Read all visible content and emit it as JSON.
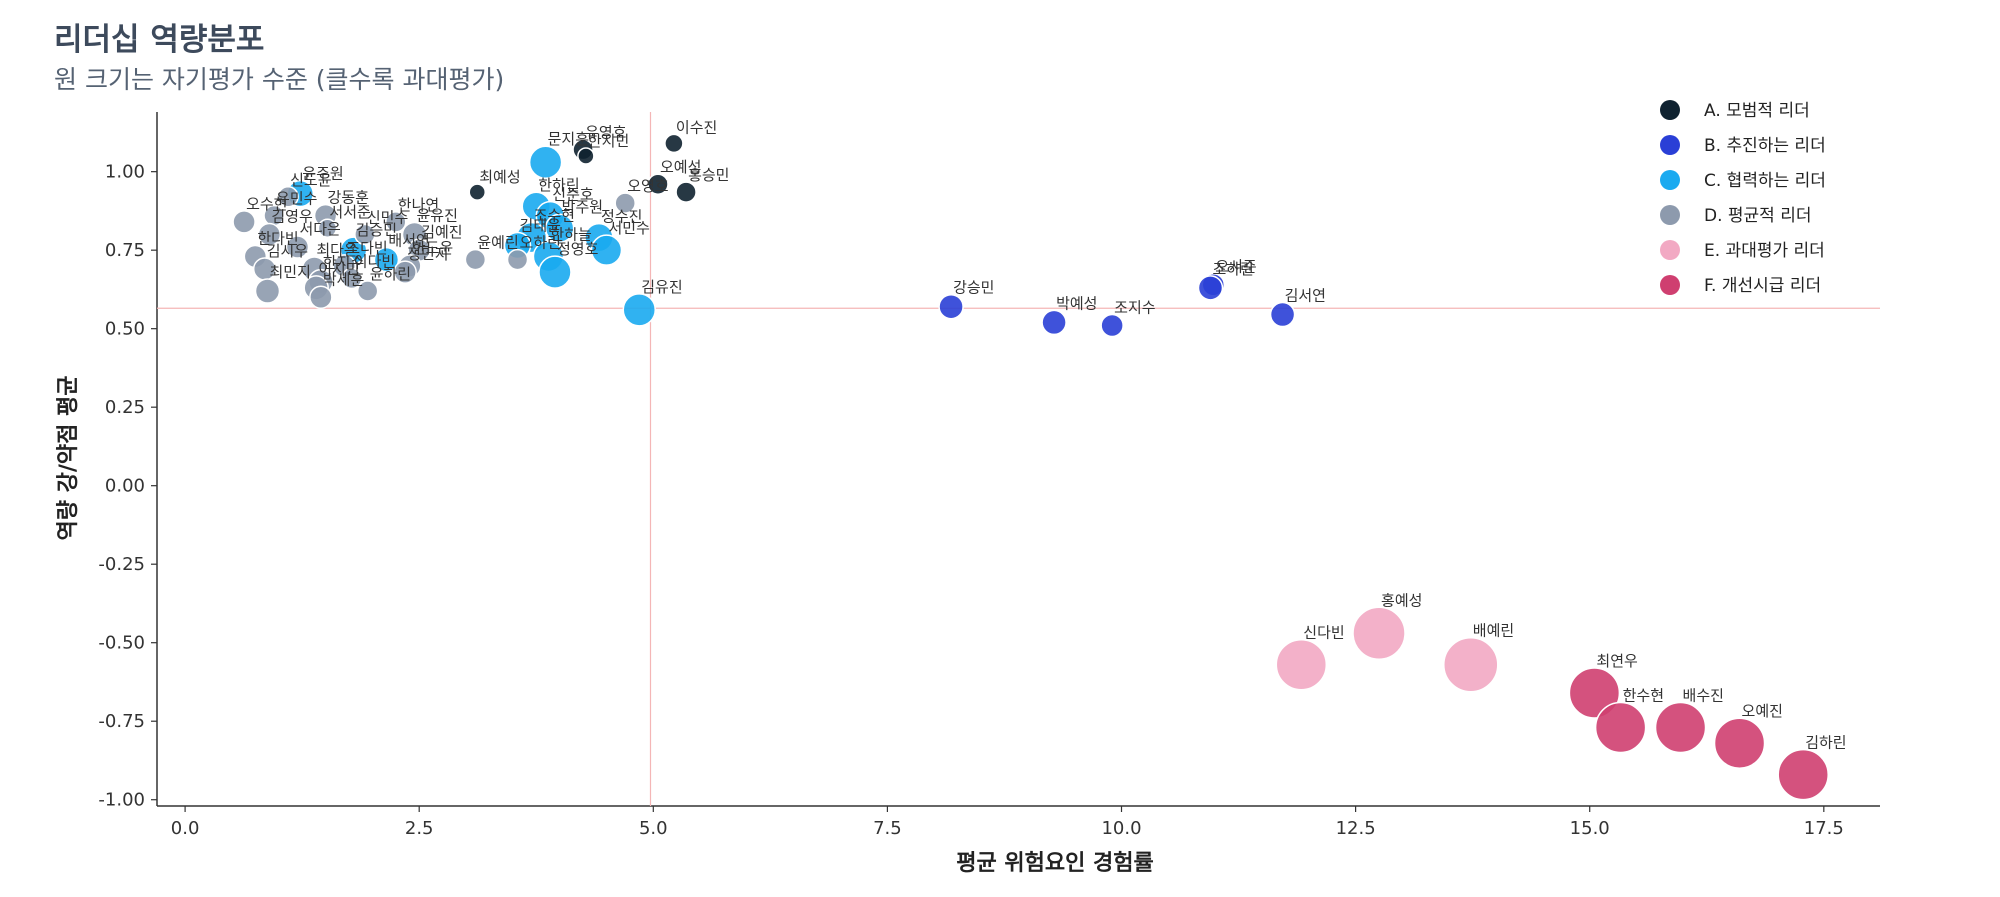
{
  "chart_data": {
    "type": "scatter",
    "title": "리더십 역량분포",
    "subtitle": "원 크기는 자기평가 수준 (클수록 과대평가)",
    "xlabel": "평균 위험요인 경험률",
    "ylabel": "역량 강/약점 평균",
    "xlim": [
      -0.3,
      18.1
    ],
    "ylim": [
      -1.02,
      1.19
    ],
    "xticks": [
      0.0,
      2.5,
      5.0,
      7.5,
      10.0,
      12.5,
      15.0,
      17.5
    ],
    "xtick_labels": [
      "0.0",
      "2.5",
      "5.0",
      "7.5",
      "10.0",
      "12.5",
      "15.0",
      "17.5"
    ],
    "yticks": [
      1.0,
      0.75,
      0.5,
      0.25,
      0.0,
      -0.25,
      -0.5,
      -0.75,
      -1.0
    ],
    "ytick_labels": [
      "1.00",
      "0.75",
      "0.50",
      "0.25",
      "0.00",
      "-0.25",
      "-0.50",
      "-0.75",
      "-1.00"
    ],
    "reference_lines": {
      "x": 4.97,
      "y": 0.565,
      "color": "#f4b6b6"
    },
    "grid": false,
    "legend_position": "top-right",
    "series": [
      {
        "name": "A. 모범적 리더",
        "color": "#0f2230",
        "points": [
          {
            "label": "유영호",
            "x": 4.25,
            "y": 1.07,
            "s": 10
          },
          {
            "label": "한지민",
            "x": 4.28,
            "y": 1.05,
            "s": 8
          },
          {
            "label": "이수진",
            "x": 5.22,
            "y": 1.09,
            "s": 9
          },
          {
            "label": "오예성",
            "x": 5.05,
            "y": 0.96,
            "s": 10
          },
          {
            "label": "홍승민",
            "x": 5.35,
            "y": 0.935,
            "s": 10
          },
          {
            "label": "최예성",
            "x": 3.12,
            "y": 0.935,
            "s": 8
          }
        ]
      },
      {
        "name": "B. 추진하는 리더",
        "color": "#2a3fd6",
        "points": [
          {
            "label": "강승민",
            "x": 8.18,
            "y": 0.57,
            "s": 12
          },
          {
            "label": "박예성",
            "x": 9.28,
            "y": 0.52,
            "s": 12
          },
          {
            "label": "조지수",
            "x": 9.9,
            "y": 0.51,
            "s": 11
          },
          {
            "label": "오서준",
            "x": 10.98,
            "y": 0.64,
            "s": 11
          },
          {
            "label": "조하린",
            "x": 10.95,
            "y": 0.63,
            "s": 12
          },
          {
            "label": "김서연",
            "x": 11.72,
            "y": 0.545,
            "s": 12
          }
        ]
      },
      {
        "name": "C. 협력하는 리더",
        "color": "#1aaaf0",
        "points": [
          {
            "label": "윤주원",
            "x": 1.23,
            "y": 0.93,
            "s": 13
          },
          {
            "label": "김승민",
            "x": 1.8,
            "y": 0.75,
            "s": 13
          },
          {
            "label": "배서연",
            "x": 2.15,
            "y": 0.72,
            "s": 12
          },
          {
            "label": "문지훈",
            "x": 3.85,
            "y": 1.03,
            "s": 16
          },
          {
            "label": "한하린",
            "x": 3.75,
            "y": 0.89,
            "s": 14
          },
          {
            "label": "신준호",
            "x": 3.9,
            "y": 0.86,
            "s": 14
          },
          {
            "label": "조수현",
            "x": 3.7,
            "y": 0.79,
            "s": 15
          },
          {
            "label": "김태윤",
            "x": 3.55,
            "y": 0.765,
            "s": 13
          },
          {
            "label": "박주원",
            "x": 4.0,
            "y": 0.82,
            "s": 14
          },
          {
            "label": "정수진",
            "x": 4.42,
            "y": 0.79,
            "s": 14
          },
          {
            "label": "한하늘",
            "x": 3.88,
            "y": 0.73,
            "s": 15
          },
          {
            "label": "서민수",
            "x": 4.5,
            "y": 0.75,
            "s": 15
          },
          {
            "label": "정영호",
            "x": 3.95,
            "y": 0.68,
            "s": 16
          },
          {
            "label": "김유진",
            "x": 4.85,
            "y": 0.56,
            "s": 16
          }
        ]
      },
      {
        "name": "D. 평균적 리더",
        "color": "#8d9aad",
        "points": [
          {
            "label": "신도윤",
            "x": 1.1,
            "y": 0.92,
            "s": 10
          },
          {
            "label": "유민수",
            "x": 0.95,
            "y": 0.86,
            "s": 10
          },
          {
            "label": "오수현",
            "x": 0.63,
            "y": 0.84,
            "s": 11
          },
          {
            "label": "김영우",
            "x": 0.9,
            "y": 0.8,
            "s": 11
          },
          {
            "label": "강동훈",
            "x": 1.5,
            "y": 0.86,
            "s": 11
          },
          {
            "label": "서서준",
            "x": 1.52,
            "y": 0.82,
            "s": 9
          },
          {
            "label": "신민수",
            "x": 1.92,
            "y": 0.8,
            "s": 10
          },
          {
            "label": "한나연",
            "x": 2.25,
            "y": 0.84,
            "s": 10
          },
          {
            "label": "윤유진",
            "x": 2.45,
            "y": 0.8,
            "s": 12
          },
          {
            "label": "김예진",
            "x": 2.5,
            "y": 0.75,
            "s": 11
          },
          {
            "label": "한다빈",
            "x": 0.75,
            "y": 0.73,
            "s": 11
          },
          {
            "label": "서다은",
            "x": 1.2,
            "y": 0.76,
            "s": 11
          },
          {
            "label": "김시우",
            "x": 0.85,
            "y": 0.69,
            "s": 11
          },
          {
            "label": "최다은",
            "x": 1.38,
            "y": 0.69,
            "s": 12
          },
          {
            "label": "한도윤",
            "x": 2.4,
            "y": 0.7,
            "s": 11
          },
          {
            "label": "최민지",
            "x": 0.88,
            "y": 0.62,
            "s": 12
          },
          {
            "label": "조다빈",
            "x": 1.7,
            "y": 0.7,
            "s": 11
          },
          {
            "label": "정민지",
            "x": 2.35,
            "y": 0.68,
            "s": 11
          },
          {
            "label": "한지수",
            "x": 1.45,
            "y": 0.65,
            "s": 12
          },
          {
            "label": "이다빈",
            "x": 1.78,
            "y": 0.66,
            "s": 10
          },
          {
            "label": "이지민",
            "x": 1.4,
            "y": 0.63,
            "s": 12
          },
          {
            "label": "윤하린",
            "x": 1.95,
            "y": 0.62,
            "s": 10
          },
          {
            "label": "박세훈",
            "x": 1.45,
            "y": 0.6,
            "s": 11
          },
          {
            "label": "윤예린",
            "x": 3.1,
            "y": 0.72,
            "s": 10
          },
          {
            "label": "오하린",
            "x": 3.55,
            "y": 0.72,
            "s": 10
          },
          {
            "label": "오영호",
            "x": 4.7,
            "y": 0.9,
            "s": 10
          }
        ]
      },
      {
        "name": "E. 과대평가 리더",
        "color": "#f2a9c3",
        "points": [
          {
            "label": "홍예성",
            "x": 12.75,
            "y": -0.47,
            "s": 26
          },
          {
            "label": "신다빈",
            "x": 11.92,
            "y": -0.57,
            "s": 25
          },
          {
            "label": "배예린",
            "x": 13.73,
            "y": -0.57,
            "s": 27
          }
        ]
      },
      {
        "name": "F. 개선시급 리더",
        "color": "#cf3f70",
        "points": [
          {
            "label": "최연우",
            "x": 15.05,
            "y": -0.66,
            "s": 25
          },
          {
            "label": "한수현",
            "x": 15.33,
            "y": -0.77,
            "s": 25
          },
          {
            "label": "배수진",
            "x": 15.97,
            "y": -0.77,
            "s": 25
          },
          {
            "label": "오예진",
            "x": 16.6,
            "y": -0.82,
            "s": 25
          },
          {
            "label": "김하린",
            "x": 17.28,
            "y": -0.92,
            "s": 25
          }
        ]
      }
    ]
  }
}
